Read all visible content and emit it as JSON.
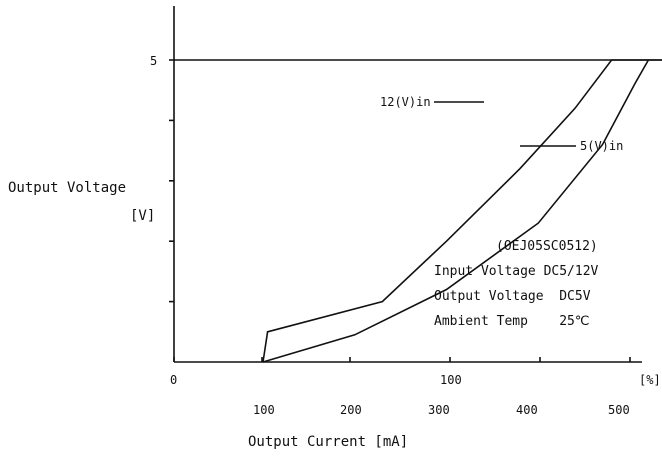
{
  "chart_data": {
    "type": "line",
    "ylabel_line1": "Output Voltage",
    "ylabel_line2": "[V]",
    "xlabel": "Output Current [mA]",
    "y_tick_labels": [
      "5"
    ],
    "x_percent_ticks": [
      "0",
      "100",
      "[%]"
    ],
    "x_ma_ticks": [
      "100",
      "200",
      "300",
      "400",
      "500"
    ],
    "xlim_mA": [
      0,
      600
    ],
    "ylim_V": [
      0,
      5.8
    ],
    "y_minor_ticks_V": [
      1,
      2,
      3,
      4,
      5
    ],
    "series": [
      {
        "name": "12(V)in",
        "points_mA_V": [
          [
            100,
            0
          ],
          [
            105,
            0.5
          ],
          [
            230,
            1.0
          ],
          [
            300,
            2.0
          ],
          [
            380,
            3.2
          ],
          [
            440,
            4.2
          ],
          [
            480,
            5.0
          ],
          [
            600,
            5.0
          ]
        ]
      },
      {
        "name": "5(V)in",
        "points_mA_V": [
          [
            100,
            0
          ],
          [
            200,
            0.45
          ],
          [
            300,
            1.2
          ],
          [
            400,
            2.3
          ],
          [
            470,
            3.6
          ],
          [
            505,
            4.6
          ],
          [
            520,
            5.0
          ],
          [
            600,
            5.0
          ]
        ]
      }
    ],
    "annotation": {
      "model": "(OEJ05SC0512)",
      "lines": [
        "Input Voltage DC5/12V",
        "Output Voltage  DC5V",
        "Ambient Temp    25℃"
      ]
    }
  }
}
